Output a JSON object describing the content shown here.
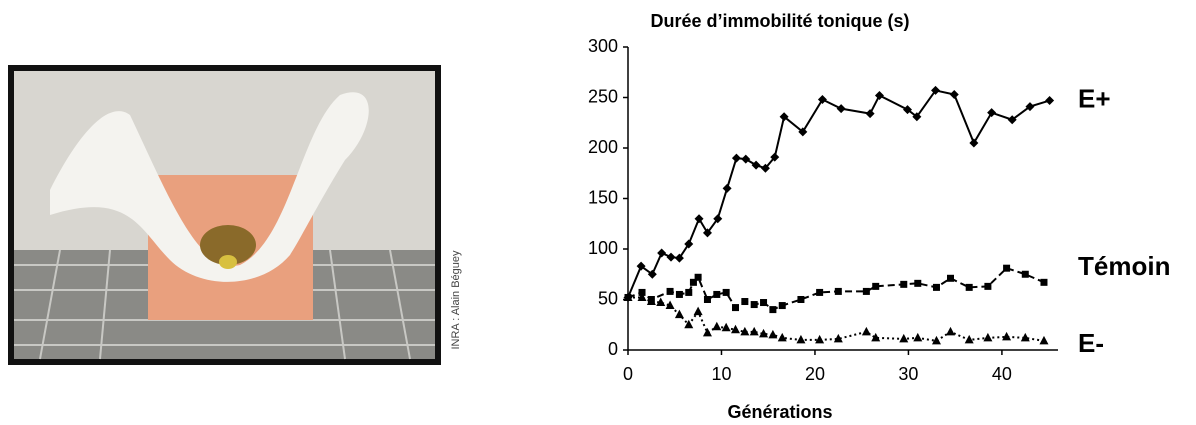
{
  "photo": {
    "credit": "INRA : Alain Béguey"
  },
  "chart_data": {
    "type": "line",
    "title": "Durée d’immobilité tonique (s)",
    "xlabel": "Générations",
    "xlim": [
      0,
      46
    ],
    "xticks": [
      0,
      10,
      20,
      30,
      40
    ],
    "ylim": [
      0,
      300
    ],
    "yticks": [
      0,
      50,
      100,
      150,
      200,
      250,
      300
    ],
    "series": [
      {
        "name": "E+",
        "color": "#000000",
        "marker": "diamond",
        "dash": "solid",
        "x": [
          0,
          1.4,
          2.6,
          3.6,
          4.6,
          5.5,
          6.5,
          7.6,
          8.5,
          9.6,
          10.6,
          11.6,
          12.6,
          13.7,
          14.7,
          15.7,
          16.7,
          18.7,
          20.8,
          22.8,
          25.9,
          26.9,
          29.9,
          30.9,
          32.9,
          34.9,
          37,
          38.9,
          41.1,
          43,
          45.1
        ],
        "values": [
          52,
          83,
          75,
          96,
          92,
          91,
          105,
          130,
          116,
          130,
          160,
          190,
          189,
          183,
          180,
          191,
          231,
          216,
          248,
          239,
          234,
          252,
          238,
          231,
          257,
          253,
          205,
          235,
          228,
          241,
          247
        ]
      },
      {
        "name": "Témoin",
        "color": "#000000",
        "marker": "square",
        "dash": "dashed",
        "x": [
          0,
          1.5,
          2.5,
          4.5,
          5.5,
          6.5,
          7,
          7.5,
          8.5,
          9.5,
          10.5,
          11.5,
          12.5,
          13.5,
          14.5,
          15.5,
          16.5,
          18.5,
          20.5,
          22.5,
          25.5,
          26.5,
          29.5,
          31,
          33,
          34.5,
          36.5,
          38.5,
          40.5,
          42.5,
          44.5
        ],
        "values": [
          52,
          57,
          50,
          58,
          55,
          57,
          67,
          72,
          50,
          55,
          57,
          42,
          48,
          45,
          47,
          40,
          44,
          50,
          57,
          58,
          58,
          63,
          65,
          66,
          62,
          71,
          62,
          63,
          81,
          75,
          67
        ]
      },
      {
        "name": "E-",
        "color": "#000000",
        "marker": "triangle",
        "dash": "dotted",
        "x": [
          0,
          1.5,
          2.5,
          3.5,
          4.5,
          5.5,
          6.5,
          7.5,
          8.5,
          9.5,
          10.5,
          11.5,
          12.5,
          13.5,
          14.5,
          15.5,
          16.5,
          18.5,
          20.5,
          22.5,
          25.5,
          26.5,
          29.5,
          31,
          33,
          34.5,
          36.5,
          38.5,
          40.5,
          42.5,
          44.5
        ],
        "values": [
          52,
          52,
          48,
          47,
          44,
          35,
          25,
          38,
          17,
          23,
          22,
          20,
          18,
          18,
          16,
          15,
          12,
          10,
          10,
          11,
          18,
          12,
          11,
          12,
          9,
          18,
          10,
          12,
          13,
          12,
          9
        ]
      }
    ]
  }
}
